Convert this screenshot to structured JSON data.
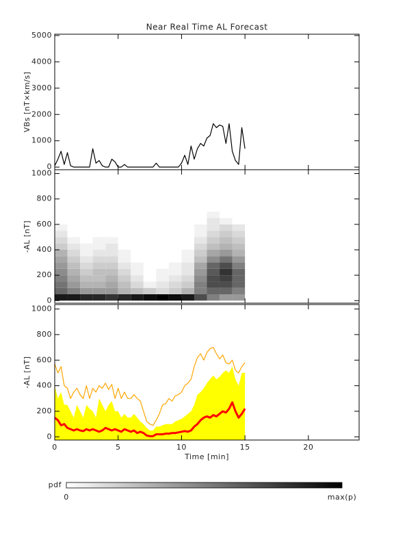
{
  "chart_data": [
    {
      "type": "line",
      "title": "Near Real Time AL Forecast",
      "ylabel": "VBs [nT×km/s]",
      "xlim": [
        0,
        24
      ],
      "xticks": [
        0,
        5,
        10,
        15,
        20
      ],
      "ylim": [
        -100,
        5050
      ],
      "yticks": [
        0,
        1000,
        2000,
        3000,
        4000,
        5000
      ],
      "x": [
        0,
        0.25,
        0.5,
        0.75,
        1,
        1.25,
        1.5,
        1.75,
        2,
        2.25,
        2.5,
        2.75,
        3,
        3.25,
        3.5,
        3.75,
        4,
        4.25,
        4.5,
        4.75,
        5,
        5.25,
        5.5,
        5.75,
        6,
        6.25,
        6.5,
        6.75,
        7,
        7.25,
        7.5,
        7.75,
        8,
        8.25,
        8.5,
        8.75,
        9,
        9.25,
        9.5,
        9.75,
        10,
        10.25,
        10.5,
        10.75,
        11,
        11.25,
        11.5,
        11.75,
        12,
        12.25,
        12.5,
        12.75,
        13,
        13.25,
        13.5,
        13.75,
        14,
        14.25,
        14.5,
        14.75,
        15
      ],
      "series": [
        {
          "color": "#000000",
          "values": [
            50,
            300,
            600,
            100,
            550,
            50,
            0,
            0,
            0,
            0,
            0,
            0,
            700,
            150,
            250,
            50,
            0,
            0,
            300,
            200,
            0,
            0,
            100,
            0,
            0,
            0,
            0,
            0,
            0,
            0,
            0,
            0,
            150,
            0,
            0,
            0,
            0,
            0,
            0,
            0,
            150,
            450,
            100,
            800,
            300,
            700,
            900,
            800,
            1100,
            1200,
            1650,
            1500,
            1600,
            1550,
            900,
            1650,
            600,
            250,
            100,
            1500,
            700
          ]
        }
      ]
    },
    {
      "type": "heatmap",
      "ylabel": "-AL [nT]",
      "xlim": [
        0,
        24
      ],
      "xticks": [
        0,
        5,
        10,
        15,
        20
      ],
      "ylim": [
        -20,
        1030
      ],
      "yticks": [
        0,
        200,
        400,
        600,
        800,
        1000
      ],
      "xbins": [
        0,
        1,
        2,
        3,
        4,
        5,
        6,
        7,
        8,
        9,
        10,
        11,
        12,
        13,
        14,
        15
      ],
      "ybins": [
        0,
        50,
        100,
        150,
        200,
        250,
        300,
        350,
        400,
        450,
        500,
        550,
        600,
        650,
        700
      ],
      "values": [
        [
          0.9,
          0.9,
          0.85,
          0.85,
          0.8,
          0.85,
          0.9,
          0.95,
          1,
          0.95,
          0.9,
          0.7,
          0.5,
          0.4,
          0.4
        ],
        [
          0.6,
          0.5,
          0.4,
          0.4,
          0.4,
          0.3,
          0.25,
          0.2,
          0.15,
          0.2,
          0.3,
          0.5,
          0.6,
          0.6,
          0.5
        ],
        [
          0.55,
          0.4,
          0.3,
          0.3,
          0.35,
          0.25,
          0.15,
          0.05,
          0.1,
          0.15,
          0.2,
          0.5,
          0.7,
          0.7,
          0.6
        ],
        [
          0.5,
          0.35,
          0.25,
          0.25,
          0.3,
          0.2,
          0.1,
          0,
          0.05,
          0.1,
          0.15,
          0.45,
          0.7,
          0.75,
          0.6
        ],
        [
          0.45,
          0.3,
          0.2,
          0.25,
          0.25,
          0.15,
          0.05,
          0,
          0.05,
          0.05,
          0.1,
          0.4,
          0.65,
          0.8,
          0.6
        ],
        [
          0.4,
          0.25,
          0.15,
          0.2,
          0.2,
          0.1,
          0.05,
          0,
          0,
          0.05,
          0.1,
          0.35,
          0.6,
          0.7,
          0.5
        ],
        [
          0.35,
          0.2,
          0.1,
          0.15,
          0.15,
          0.05,
          0,
          0,
          0,
          0,
          0.05,
          0.25,
          0.45,
          0.55,
          0.4
        ],
        [
          0.3,
          0.15,
          0.05,
          0.1,
          0.1,
          0.05,
          0,
          0,
          0,
          0,
          0.05,
          0.2,
          0.35,
          0.4,
          0.3
        ],
        [
          0.2,
          0.1,
          0.05,
          0.05,
          0.1,
          0,
          0,
          0,
          0,
          0,
          0,
          0.15,
          0.25,
          0.3,
          0.25
        ],
        [
          0.15,
          0.05,
          0,
          0.05,
          0.05,
          0,
          0,
          0,
          0,
          0,
          0,
          0.1,
          0.2,
          0.25,
          0.2
        ],
        [
          0.1,
          0,
          0,
          0,
          0,
          0,
          0,
          0,
          0,
          0,
          0,
          0.05,
          0.15,
          0.2,
          0.15
        ],
        [
          0.05,
          0,
          0,
          0,
          0,
          0,
          0,
          0,
          0,
          0,
          0,
          0.05,
          0.1,
          0.15,
          0.1
        ],
        [
          0,
          0,
          0,
          0,
          0,
          0,
          0,
          0,
          0,
          0,
          0,
          0,
          0.1,
          0.05,
          0
        ],
        [
          0,
          0,
          0,
          0,
          0,
          0,
          0,
          0,
          0,
          0,
          0,
          0,
          0.05,
          0,
          0
        ]
      ],
      "colorbar": {
        "label": "pdf",
        "min_label": "0",
        "max_label": "max(p)"
      }
    },
    {
      "type": "line",
      "ylabel": "-AL [nT]",
      "xlabel": "Time [min]",
      "xlim": [
        0,
        24
      ],
      "xticks": [
        0,
        5,
        10,
        15,
        20
      ],
      "ylim": [
        -25,
        1035
      ],
      "yticks": [
        0,
        200,
        400,
        600,
        800,
        1000
      ],
      "x": [
        0,
        0.25,
        0.5,
        0.75,
        1,
        1.25,
        1.5,
        1.75,
        2,
        2.25,
        2.5,
        2.75,
        3,
        3.25,
        3.5,
        3.75,
        4,
        4.25,
        4.5,
        4.75,
        5,
        5.25,
        5.5,
        5.75,
        6,
        6.25,
        6.5,
        6.75,
        7,
        7.25,
        7.5,
        7.75,
        8,
        8.25,
        8.5,
        8.75,
        9,
        9.25,
        9.5,
        9.75,
        10,
        10.25,
        10.5,
        10.75,
        11,
        11.25,
        11.5,
        11.75,
        12,
        12.25,
        12.5,
        12.75,
        13,
        13.25,
        13.5,
        13.75,
        14,
        14.25,
        14.5,
        14.75,
        15
      ],
      "series": [
        {
          "color": "#ffff00",
          "fill": true,
          "values": [
            400,
            300,
            350,
            250,
            250,
            200,
            150,
            250,
            200,
            150,
            250,
            220,
            200,
            150,
            300,
            250,
            200,
            250,
            280,
            200,
            200,
            150,
            180,
            150,
            150,
            180,
            150,
            120,
            100,
            70,
            50,
            50,
            80,
            80,
            90,
            100,
            100,
            100,
            120,
            130,
            140,
            160,
            180,
            200,
            250,
            330,
            350,
            380,
            420,
            450,
            480,
            450,
            470,
            500,
            520,
            500,
            550,
            450,
            400,
            500,
            500
          ]
        },
        {
          "color": "#ffa500",
          "values": [
            570,
            500,
            550,
            400,
            380,
            300,
            350,
            380,
            330,
            300,
            400,
            300,
            380,
            350,
            400,
            380,
            420,
            370,
            410,
            300,
            380,
            300,
            350,
            300,
            300,
            330,
            300,
            280,
            200,
            120,
            100,
            90,
            130,
            180,
            250,
            260,
            300,
            280,
            320,
            330,
            350,
            400,
            420,
            450,
            550,
            620,
            650,
            600,
            660,
            690,
            700,
            650,
            610,
            640,
            580,
            570,
            600,
            520,
            500,
            550,
            580
          ]
        },
        {
          "color": "#ff0000",
          "width": 3,
          "values": [
            150,
            130,
            90,
            100,
            70,
            60,
            50,
            60,
            50,
            45,
            60,
            50,
            60,
            50,
            40,
            50,
            70,
            60,
            50,
            60,
            50,
            40,
            60,
            50,
            40,
            50,
            30,
            40,
            30,
            10,
            5,
            5,
            20,
            20,
            20,
            25,
            25,
            30,
            30,
            35,
            40,
            45,
            40,
            50,
            80,
            100,
            130,
            150,
            160,
            150,
            170,
            160,
            180,
            200,
            190,
            220,
            270,
            200,
            150,
            180,
            220
          ]
        }
      ]
    }
  ]
}
